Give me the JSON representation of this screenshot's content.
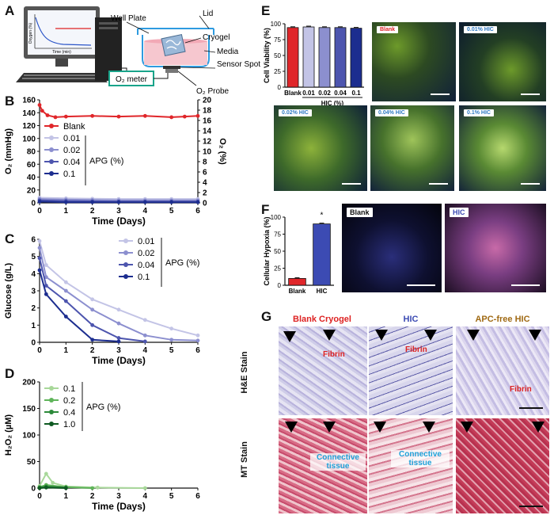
{
  "panels": {
    "A": {
      "label": "A",
      "device_labels": [
        "Well Plate",
        "Lid",
        "Cryogel",
        "Media",
        "Sensor\nSpot",
        "O₂ Probe",
        "O₂ meter"
      ],
      "screen_axis_x": "Time (min)",
      "screen_axis_y": "Oxygen (%)"
    },
    "B": {
      "label": "B"
    },
    "C": {
      "label": "C"
    },
    "D": {
      "label": "D"
    },
    "E": {
      "label": "E",
      "image_tags": [
        "Blank",
        "0.01% HIC",
        "0.02% HIC",
        "0.04% HIC",
        "0.1% HIC"
      ]
    },
    "F": {
      "label": "F",
      "image_tags": [
        "Blank",
        "HIC"
      ]
    },
    "G": {
      "label": "G",
      "col_titles": [
        "Blank Cryogel",
        "HIC",
        "APC-free HIC"
      ],
      "row_titles": [
        "H&E Stain",
        "MT Stain"
      ],
      "annotations": {
        "fibrin1": "Fibrin",
        "fibrin2": "Fibrin",
        "fibrin3": "Fibrin",
        "ct1": "Connective\ntissue",
        "ct2": "Connective\ntissue"
      }
    }
  },
  "chart_data": [
    {
      "id": "B",
      "type": "line",
      "xlabel": "Time (Days)",
      "ylabel": "O₂ (mmHg)",
      "y2label": "O₂ (%)",
      "xlim": [
        0,
        6
      ],
      "ylim": [
        0,
        160
      ],
      "y2lim": [
        0,
        20
      ],
      "xticks": [
        "0",
        "1",
        "2",
        "3",
        "4",
        "5",
        "6"
      ],
      "yticks": [
        "0",
        "20",
        "40",
        "60",
        "80",
        "100",
        "120",
        "140",
        "160"
      ],
      "y2ticks": [
        "0",
        "2",
        "4",
        "6",
        "8",
        "10",
        "12",
        "14",
        "16",
        "18",
        "20"
      ],
      "legend_title": "APG (%)",
      "series": [
        {
          "name": "Blank",
          "color": "#e0262a",
          "x": [
            0,
            0.1,
            0.3,
            0.6,
            1,
            2,
            3,
            4,
            5,
            5.5,
            6
          ],
          "y": [
            152,
            143,
            136,
            133,
            134,
            135,
            134,
            135,
            133,
            134,
            135
          ]
        },
        {
          "name": "0.01",
          "color": "#c3c4e6",
          "x": [
            0,
            1,
            2,
            3,
            4,
            5,
            6
          ],
          "y": [
            8,
            7,
            6.5,
            6,
            6,
            6,
            6
          ]
        },
        {
          "name": "0.02",
          "color": "#8c8fcf",
          "x": [
            0,
            1,
            2,
            3,
            4,
            5,
            6
          ],
          "y": [
            6,
            5,
            4.5,
            4,
            4,
            4,
            4
          ]
        },
        {
          "name": "0.04",
          "color": "#4d55ae",
          "x": [
            0,
            1,
            2,
            3,
            4,
            5,
            6
          ],
          "y": [
            4,
            3,
            2.5,
            2,
            2,
            2,
            2
          ]
        },
        {
          "name": "0.1",
          "color": "#1c2d8f",
          "x": [
            0,
            1,
            2,
            3,
            4,
            5,
            6
          ],
          "y": [
            2,
            1,
            1,
            1,
            1,
            1,
            1
          ]
        }
      ]
    },
    {
      "id": "C",
      "type": "line",
      "xlabel": "Time (Days)",
      "ylabel": "Glucose (g/L)",
      "xlim": [
        0,
        6
      ],
      "ylim": [
        0,
        6
      ],
      "xticks": [
        "0",
        "1",
        "2",
        "3",
        "4",
        "5",
        "6"
      ],
      "yticks": [
        "0",
        "1",
        "2",
        "3",
        "4",
        "5",
        "6"
      ],
      "legend_title": "APG (%)",
      "series": [
        {
          "name": "0.01",
          "color": "#c3c4e6",
          "x": [
            0,
            0.25,
            1,
            2,
            3,
            4,
            5,
            6
          ],
          "y": [
            5.9,
            4.5,
            3.5,
            2.5,
            1.9,
            1.3,
            0.8,
            0.4
          ]
        },
        {
          "name": "0.02",
          "color": "#8c8fcf",
          "x": [
            0,
            0.25,
            1,
            2,
            3,
            4,
            5,
            6
          ],
          "y": [
            5.5,
            3.8,
            3.0,
            1.9,
            1.1,
            0.4,
            0.15,
            0.1
          ]
        },
        {
          "name": "0.04",
          "color": "#4d55ae",
          "x": [
            0,
            0.25,
            1,
            2,
            3,
            4
          ],
          "y": [
            4.9,
            3.3,
            2.4,
            1.0,
            0.25,
            0.05
          ]
        },
        {
          "name": "0.1",
          "color": "#1c2d8f",
          "x": [
            0,
            0.25,
            1,
            2,
            3
          ],
          "y": [
            4.2,
            2.8,
            1.5,
            0.15,
            0.05
          ]
        }
      ]
    },
    {
      "id": "D",
      "type": "line",
      "xlabel": "Time (Days)",
      "ylabel": "H₂O₂ (µM)",
      "xlim": [
        0,
        6
      ],
      "ylim": [
        0,
        200
      ],
      "xticks": [
        "0",
        "1",
        "2",
        "3",
        "4",
        "5",
        "6"
      ],
      "yticks": [
        "0",
        "50",
        "100",
        "150",
        "200"
      ],
      "legend_title": "APG (%)",
      "series": [
        {
          "name": "0.1",
          "color": "#a8d89a",
          "x": [
            0,
            0.25,
            0.5,
            1,
            2.2,
            4
          ],
          "y": [
            4,
            27,
            10,
            3,
            1,
            0
          ]
        },
        {
          "name": "0.2",
          "color": "#5fb45a",
          "x": [
            0,
            0.25,
            1,
            2
          ],
          "y": [
            2,
            6,
            2,
            0
          ]
        },
        {
          "name": "0.4",
          "color": "#2c8a3a",
          "x": [
            0,
            0.25,
            1
          ],
          "y": [
            1,
            3,
            1
          ]
        },
        {
          "name": "1.0",
          "color": "#0f5a22",
          "x": [
            0,
            0.25,
            1
          ],
          "y": [
            0,
            1,
            0
          ]
        }
      ]
    },
    {
      "id": "E",
      "type": "bar",
      "xlabel": "HIC (%)",
      "ylabel": "Cell Viability (%)",
      "ylim": [
        0,
        100
      ],
      "yticks": [
        "0",
        "25",
        "50",
        "75",
        "100"
      ],
      "categories": [
        "Blank",
        "0.01",
        "0.02",
        "0.04",
        "0.1"
      ],
      "values": [
        94,
        95,
        94,
        94,
        93
      ],
      "colors": [
        "#e0262a",
        "#c3c4e6",
        "#8c8fcf",
        "#4d55ae",
        "#1c2d8f"
      ]
    },
    {
      "id": "F",
      "type": "bar",
      "ylabel": "Cellular Hypoxia (%)",
      "ylim": [
        0,
        100
      ],
      "yticks": [
        "0",
        "25",
        "50",
        "75",
        "100"
      ],
      "categories": [
        "Blank",
        "HIC"
      ],
      "values": [
        10,
        90
      ],
      "colors": [
        "#e0262a",
        "#3c4bb3"
      ],
      "annotation": "*"
    }
  ]
}
